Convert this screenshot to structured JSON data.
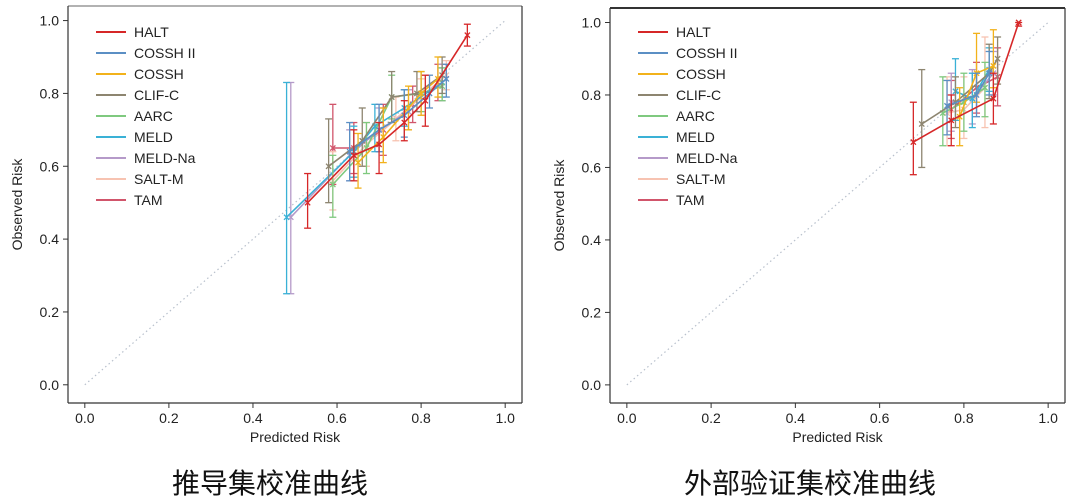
{
  "legend_names": [
    "HALT",
    "COSSH II",
    "COSSH",
    "CLIF-C",
    "AARC",
    "MELD",
    "MELD-Na",
    "SALT-M",
    "TAM"
  ],
  "colors": {
    "HALT": "#d62728",
    "COSSH II": "#5b8fc4",
    "COSSH": "#f2b21b",
    "CLIF-C": "#8d8570",
    "AARC": "#7fc97f",
    "MELD": "#3ab1d6",
    "MELD-Na": "#b59ac9",
    "SALT-M": "#f7c3b1",
    "TAM": "#d1556b",
    "reference": "#b8c0cc"
  },
  "chart_data": [
    {
      "type": "line",
      "title": "",
      "caption": "推导集校准曲线",
      "xlabel": "Predicted Risk",
      "ylabel": "Observed Risk",
      "xlim": [
        -0.04,
        1.04
      ],
      "ylim": [
        -0.05,
        1.04
      ],
      "xticks": [
        "0.0",
        "0.2",
        "0.4",
        "0.6",
        "0.8",
        "1.0"
      ],
      "yticks": [
        "0.0",
        "0.2",
        "0.4",
        "0.6",
        "0.8",
        "1.0"
      ],
      "grid": false,
      "legend": "top-left",
      "reference_line": [
        [
          0,
          0
        ],
        [
          1,
          1
        ]
      ],
      "series": [
        {
          "name": "HALT",
          "x": [
            0.53,
            0.64,
            0.7,
            0.76,
            0.81,
            0.91
          ],
          "y": [
            0.5,
            0.63,
            0.66,
            0.72,
            0.78,
            0.96
          ],
          "lo": [
            0.43,
            0.56,
            0.58,
            0.67,
            0.71,
            0.93
          ],
          "hi": [
            0.58,
            0.7,
            0.72,
            0.78,
            0.85,
            0.99
          ]
        },
        {
          "name": "COSSH II",
          "x": [
            0.63,
            0.7,
            0.76,
            0.82,
            0.86
          ],
          "y": [
            0.64,
            0.7,
            0.74,
            0.8,
            0.84
          ],
          "lo": [
            0.56,
            0.64,
            0.68,
            0.76,
            0.79
          ],
          "hi": [
            0.72,
            0.77,
            0.81,
            0.85,
            0.88
          ]
        },
        {
          "name": "COSSH",
          "x": [
            0.65,
            0.71,
            0.77,
            0.8,
            0.84
          ],
          "y": [
            0.61,
            0.68,
            0.76,
            0.8,
            0.84
          ],
          "lo": [
            0.54,
            0.61,
            0.7,
            0.74,
            0.79
          ],
          "hi": [
            0.69,
            0.76,
            0.82,
            0.86,
            0.9
          ]
        },
        {
          "name": "CLIF-C",
          "x": [
            0.58,
            0.66,
            0.73,
            0.79,
            0.85
          ],
          "y": [
            0.6,
            0.67,
            0.79,
            0.8,
            0.85
          ],
          "lo": [
            0.5,
            0.6,
            0.72,
            0.75,
            0.8
          ],
          "hi": [
            0.73,
            0.76,
            0.86,
            0.86,
            0.9
          ]
        },
        {
          "name": "AARC",
          "x": [
            0.59,
            0.67,
            0.73,
            0.8,
            0.85
          ],
          "y": [
            0.55,
            0.65,
            0.79,
            0.8,
            0.82
          ],
          "lo": [
            0.46,
            0.58,
            0.73,
            0.75,
            0.78
          ],
          "hi": [
            0.63,
            0.72,
            0.85,
            0.86,
            0.87
          ]
        },
        {
          "name": "MELD",
          "x": [
            0.48,
            0.64,
            0.69,
            0.76,
            0.85
          ],
          "y": [
            0.46,
            0.64,
            0.71,
            0.76,
            0.83
          ],
          "lo": [
            0.25,
            0.57,
            0.64,
            0.71,
            0.79
          ],
          "hi": [
            0.83,
            0.71,
            0.77,
            0.81,
            0.87
          ]
        },
        {
          "name": "MELD-Na",
          "x": [
            0.49,
            0.63,
            0.7,
            0.77,
            0.85
          ],
          "y": [
            0.46,
            0.63,
            0.7,
            0.75,
            0.83
          ],
          "lo": [
            0.25,
            0.56,
            0.64,
            0.7,
            0.78
          ],
          "hi": [
            0.83,
            0.7,
            0.76,
            0.81,
            0.88
          ]
        },
        {
          "name": "SALT-M",
          "x": [
            0.59,
            0.67,
            0.74,
            0.8,
            0.86
          ],
          "y": [
            0.56,
            0.66,
            0.73,
            0.79,
            0.85
          ],
          "lo": [
            0.48,
            0.6,
            0.67,
            0.74,
            0.81
          ],
          "hi": [
            0.64,
            0.72,
            0.79,
            0.84,
            0.89
          ]
        },
        {
          "name": "TAM",
          "x": [
            0.59,
            0.64,
            0.71,
            0.78,
            0.84
          ],
          "y": [
            0.65,
            0.65,
            0.7,
            0.77,
            0.83
          ],
          "lo": [
            0.55,
            0.58,
            0.63,
            0.72,
            0.78
          ],
          "hi": [
            0.77,
            0.72,
            0.77,
            0.82,
            0.88
          ]
        }
      ]
    },
    {
      "type": "line",
      "title": "",
      "caption": "外部验证集校准曲线",
      "xlabel": "Predicted Risk",
      "ylabel": "Observed Risk",
      "xlim": [
        -0.04,
        1.04
      ],
      "ylim": [
        -0.05,
        1.04
      ],
      "xticks": [
        "0.0",
        "0.2",
        "0.4",
        "0.6",
        "0.8",
        "1.0"
      ],
      "yticks": [
        "0.0",
        "0.2",
        "0.4",
        "0.6",
        "0.8",
        "1.0"
      ],
      "grid": false,
      "legend": "top-left",
      "reference_line": [
        [
          0,
          0
        ],
        [
          1,
          1
        ]
      ],
      "series": [
        {
          "name": "HALT",
          "x": [
            0.68,
            0.77,
            0.87,
            0.93
          ],
          "y": [
            0.67,
            0.73,
            0.79,
            1.0
          ],
          "lo": [
            0.58,
            0.66,
            0.72,
            0.99
          ],
          "hi": [
            0.78,
            0.8,
            0.86,
            1.0
          ]
        },
        {
          "name": "COSSH II",
          "x": [
            0.76,
            0.83,
            0.86
          ],
          "y": [
            0.77,
            0.8,
            0.86
          ],
          "lo": [
            0.69,
            0.74,
            0.8
          ],
          "hi": [
            0.84,
            0.86,
            0.92
          ]
        },
        {
          "name": "COSSH",
          "x": [
            0.79,
            0.83,
            0.87
          ],
          "y": [
            0.74,
            0.86,
            0.88
          ],
          "lo": [
            0.66,
            0.78,
            0.82
          ],
          "hi": [
            0.82,
            0.97,
            0.98
          ]
        },
        {
          "name": "CLIF-C",
          "x": [
            0.7,
            0.78,
            0.86,
            0.88
          ],
          "y": [
            0.72,
            0.78,
            0.86,
            0.9
          ],
          "lo": [
            0.6,
            0.71,
            0.79,
            0.83
          ],
          "hi": [
            0.87,
            0.85,
            0.94,
            0.96
          ]
        },
        {
          "name": "AARC",
          "x": [
            0.75,
            0.8,
            0.85
          ],
          "y": [
            0.75,
            0.78,
            0.82
          ],
          "lo": [
            0.66,
            0.7,
            0.74
          ],
          "hi": [
            0.85,
            0.86,
            0.89
          ]
        },
        {
          "name": "MELD",
          "x": [
            0.78,
            0.82,
            0.86
          ],
          "y": [
            0.81,
            0.79,
            0.87
          ],
          "lo": [
            0.73,
            0.71,
            0.81
          ],
          "hi": [
            0.9,
            0.86,
            0.93
          ]
        },
        {
          "name": "MELD-Na",
          "x": [
            0.77,
            0.82,
            0.87
          ],
          "y": [
            0.78,
            0.79,
            0.86
          ],
          "lo": [
            0.7,
            0.72,
            0.8
          ],
          "hi": [
            0.86,
            0.87,
            0.92
          ]
        },
        {
          "name": "SALT-M",
          "x": [
            0.76,
            0.8,
            0.85
          ],
          "y": [
            0.75,
            0.76,
            0.82
          ],
          "lo": [
            0.66,
            0.68,
            0.71
          ],
          "hi": [
            0.85,
            0.85,
            0.96
          ]
        },
        {
          "name": "TAM",
          "x": [
            0.77,
            0.83,
            0.88
          ],
          "y": [
            0.76,
            0.82,
            0.85
          ],
          "lo": [
            0.68,
            0.75,
            0.77
          ],
          "hi": [
            0.84,
            0.89,
            0.93
          ]
        }
      ]
    }
  ]
}
